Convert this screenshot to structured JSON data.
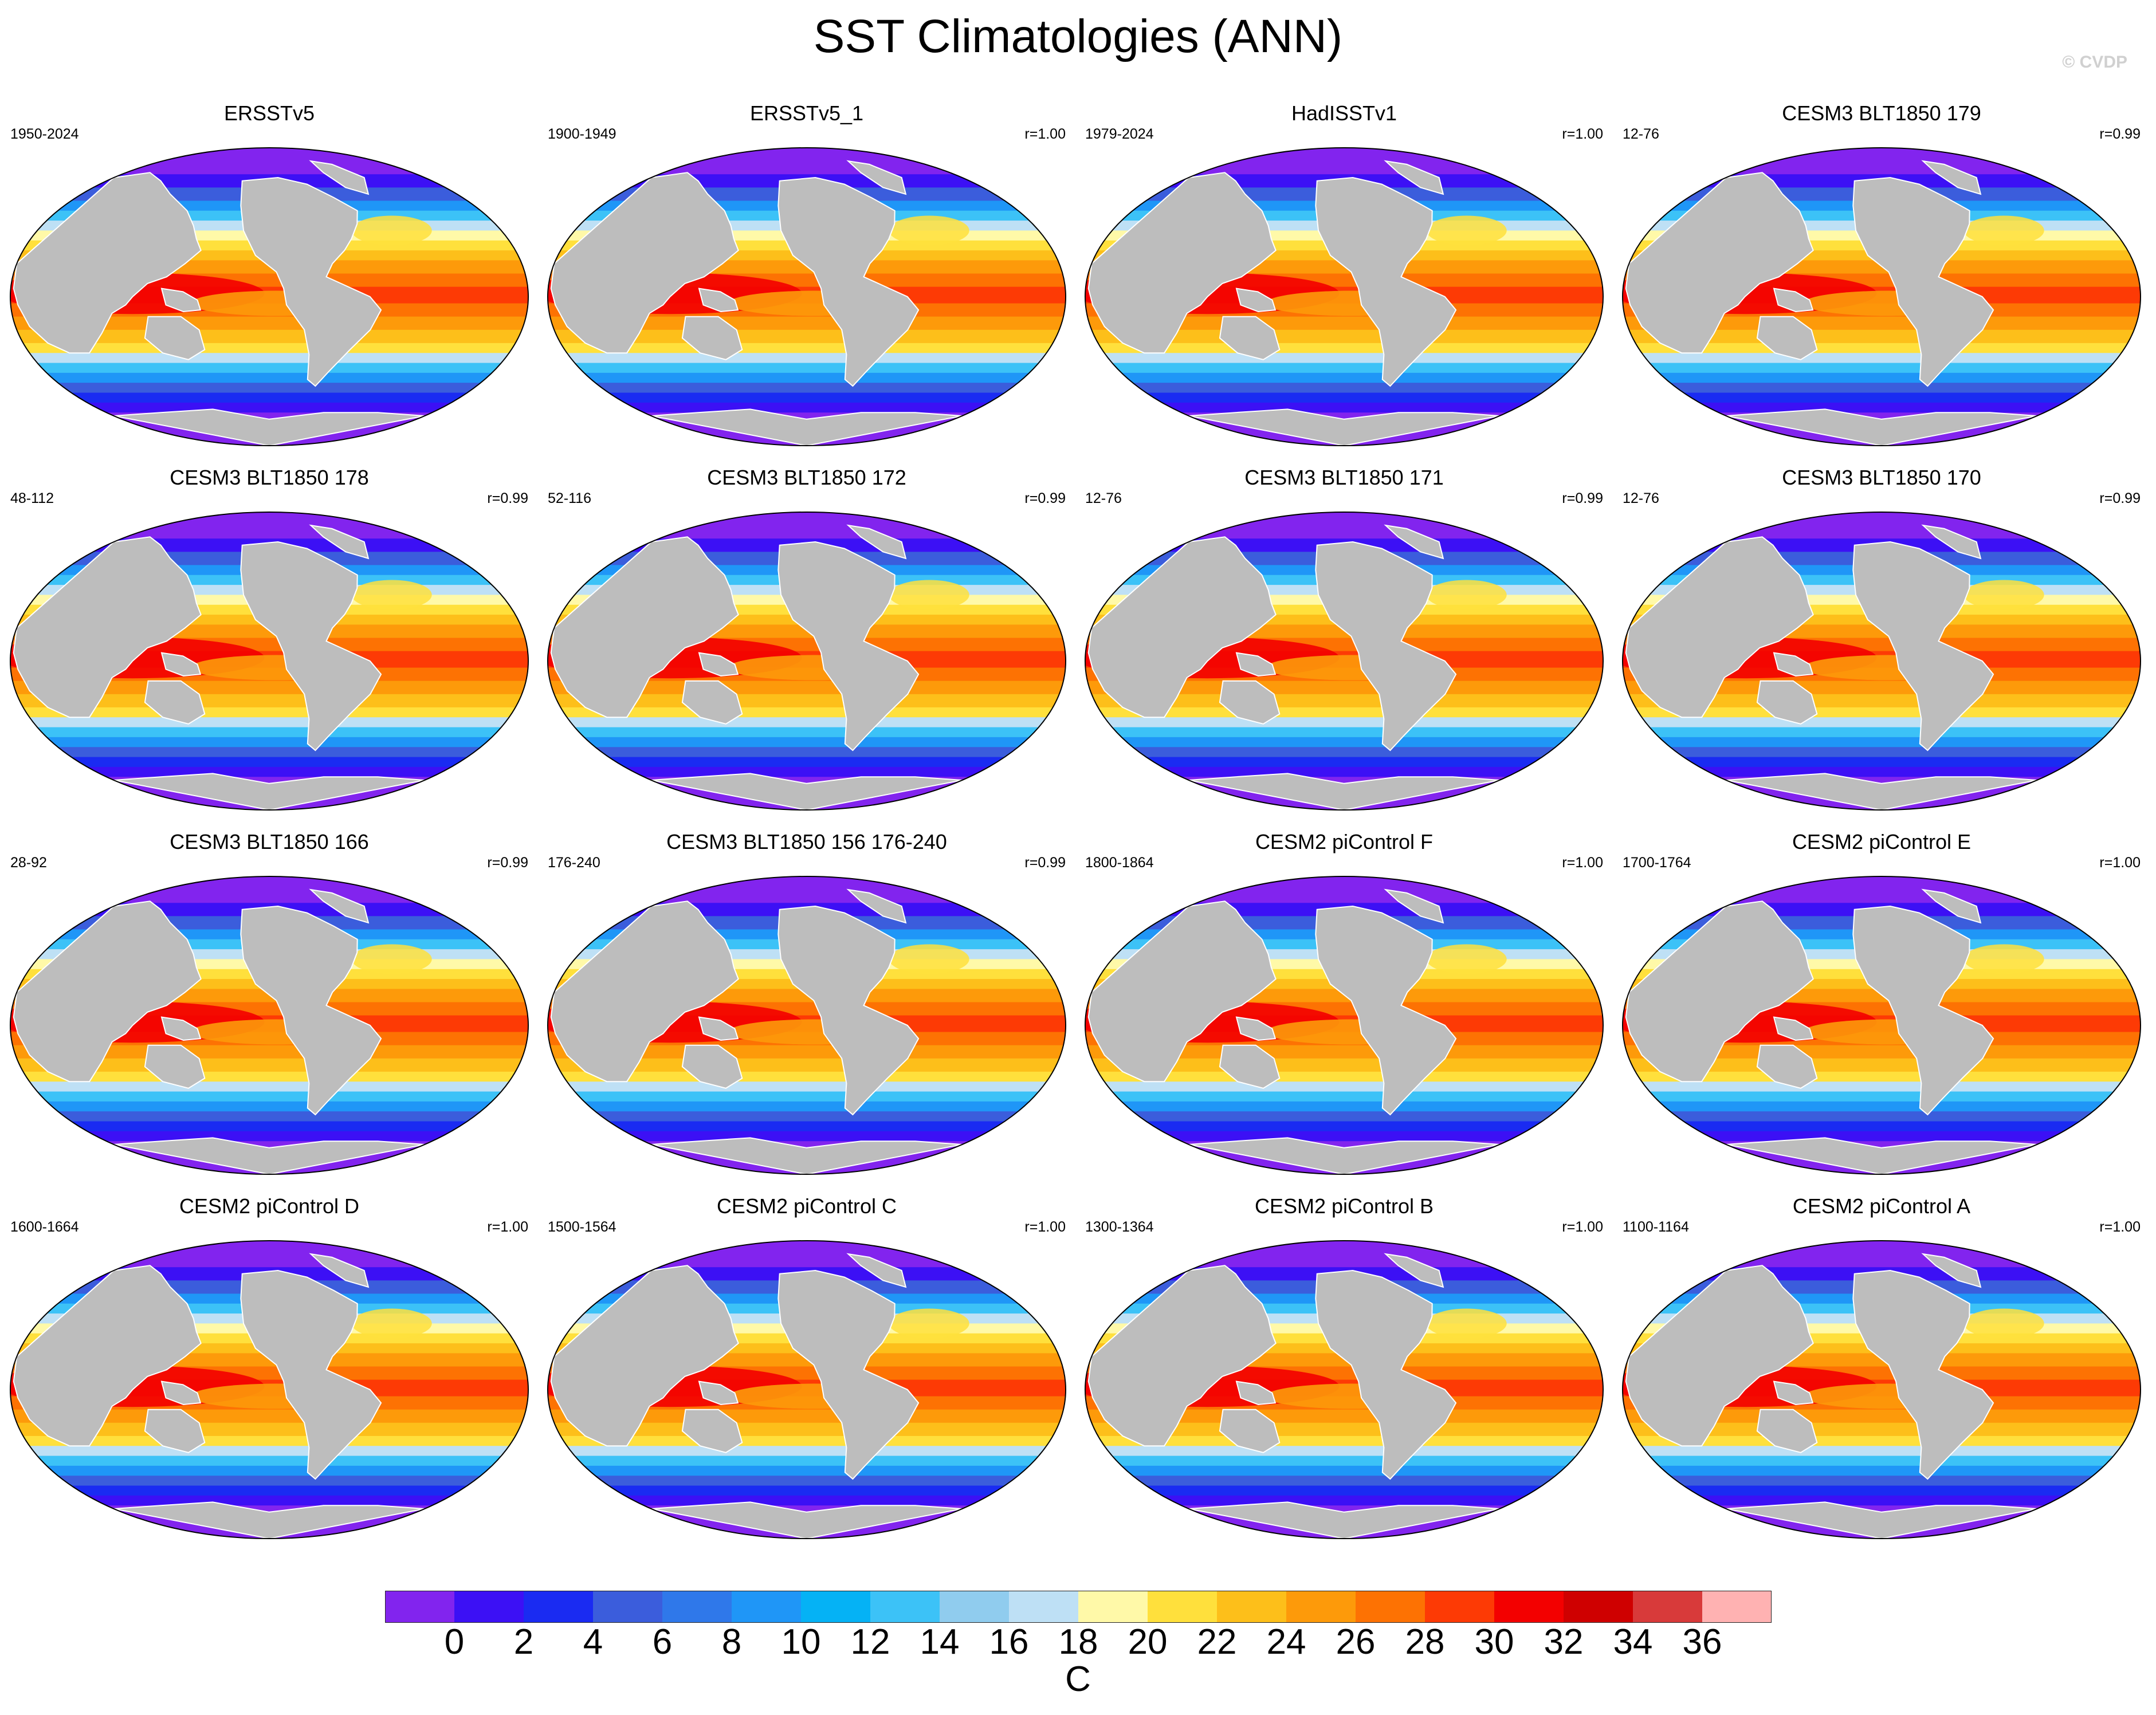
{
  "title": "SST Climatologies (ANN)",
  "watermark": "© CVDP",
  "chart_data": {
    "type": "heatmap",
    "title": "SST Climatologies (ANN)",
    "units": "C",
    "colorbar": {
      "levels": [
        0,
        2,
        4,
        6,
        8,
        10,
        12,
        14,
        16,
        18,
        20,
        22,
        24,
        26,
        28,
        30,
        32,
        34,
        36
      ],
      "labels": [
        "0",
        "2",
        "4",
        "6",
        "8",
        "10",
        "12",
        "14",
        "16",
        "18",
        "20",
        "22",
        "24",
        "26",
        "28",
        "30",
        "32",
        "34",
        "36"
      ],
      "colors": [
        "#8224ee",
        "#3c10f5",
        "#1a2bf2",
        "#3b5ddc",
        "#2f78ea",
        "#1f96f7",
        "#05b2f5",
        "#3cc2f7",
        "#90ccee",
        "#bee0f5",
        "#fff9a8",
        "#ffe03c",
        "#fdbf1a",
        "#fd9a0a",
        "#fd7203",
        "#fd3a05",
        "#f30000",
        "#cf0000",
        "#d83a3a",
        "#ffb2b2"
      ]
    },
    "panels": [
      {
        "name": "ERSSTv5",
        "period": "1950-2024",
        "r": ""
      },
      {
        "name": "ERSSTv5_1",
        "period": "1900-1949",
        "r": "r=1.00"
      },
      {
        "name": "HadISSTv1",
        "period": "1979-2024",
        "r": "r=1.00"
      },
      {
        "name": "CESM3 BLT1850 179",
        "period": "12-76",
        "r": "r=0.99"
      },
      {
        "name": "CESM3 BLT1850 178",
        "period": "48-112",
        "r": "r=0.99"
      },
      {
        "name": "CESM3 BLT1850 172",
        "period": "52-116",
        "r": "r=0.99"
      },
      {
        "name": "CESM3 BLT1850 171",
        "period": "12-76",
        "r": "r=0.99"
      },
      {
        "name": "CESM3 BLT1850 170",
        "period": "12-76",
        "r": "r=0.99"
      },
      {
        "name": "CESM3 BLT1850 166",
        "period": "28-92",
        "r": "r=0.99"
      },
      {
        "name": "CESM3 BLT1850 156 176-240",
        "period": "176-240",
        "r": "r=0.99"
      },
      {
        "name": "CESM2 piControl F",
        "period": "1800-1864",
        "r": "r=1.00"
      },
      {
        "name": "CESM2 piControl E",
        "period": "1700-1764",
        "r": "r=1.00"
      },
      {
        "name": "CESM2 piControl D",
        "period": "1600-1664",
        "r": "r=1.00"
      },
      {
        "name": "CESM2 piControl C",
        "period": "1500-1564",
        "r": "r=1.00"
      },
      {
        "name": "CESM2 piControl B",
        "period": "1300-1364",
        "r": "r=1.00"
      },
      {
        "name": "CESM2 piControl A",
        "period": "1100-1164",
        "r": "r=1.00"
      }
    ]
  }
}
